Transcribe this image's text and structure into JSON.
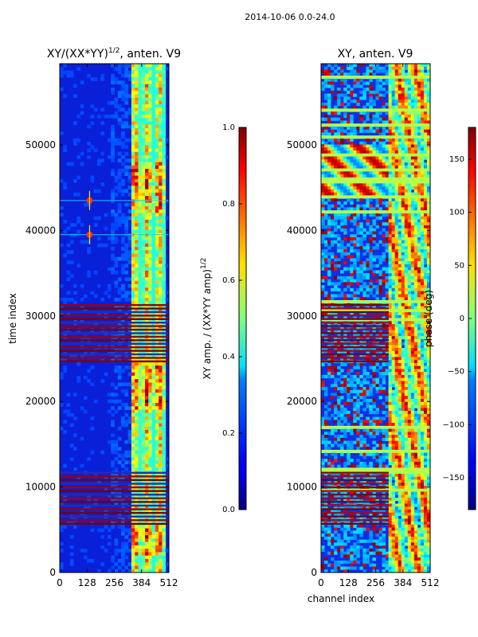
{
  "figure": {
    "suptitle": "2014-10-06 0.0-24.0"
  },
  "chart_data": [
    {
      "type": "heatmap",
      "title": "XY/(XX*YY)",
      "title_exponent": "1/2",
      "title_suffix": ", anten. V9",
      "xlabel": "",
      "ylabel": "time index",
      "xlim": [
        0,
        512
      ],
      "ylim": [
        0,
        59500
      ],
      "xticks": [
        0,
        128,
        256,
        384,
        512
      ],
      "yticks": [
        0,
        10000,
        20000,
        30000,
        40000,
        50000
      ],
      "colormap": "jet",
      "colorbar": {
        "label": "XY amp. / (XX*YY amp)",
        "label_exponent": "1/2",
        "range": [
          0,
          1
        ],
        "ticks": [
          "0.0",
          "0.2",
          "0.4",
          "0.6",
          "0.8",
          "1.0"
        ]
      },
      "features": {
        "background_value": 0.12,
        "bright_channel_range": [
          330,
          500
        ],
        "saturated_bands_time": [
          [
            5800,
            12200
          ],
          [
            24800,
            31800
          ]
        ],
        "flare_bursts_time": [
          39500,
          43500
        ]
      }
    },
    {
      "type": "heatmap",
      "title": "XY, anten. V9",
      "xlabel": "channel index",
      "ylabel": "",
      "xlim": [
        0,
        512
      ],
      "ylim": [
        0,
        59500
      ],
      "xticks": [
        0,
        128,
        256,
        384,
        512
      ],
      "yticks": [
        0,
        10000,
        20000,
        30000,
        40000,
        50000
      ],
      "colormap": "jet",
      "colorbar": {
        "label": "phase (deg)",
        "range": [
          -180,
          180
        ],
        "ticks": [
          "−150",
          "−100",
          "−50",
          "0",
          "50",
          "100",
          "150"
        ],
        "tick_values": [
          -150,
          -100,
          -50,
          0,
          50,
          100,
          150
        ]
      }
    }
  ]
}
